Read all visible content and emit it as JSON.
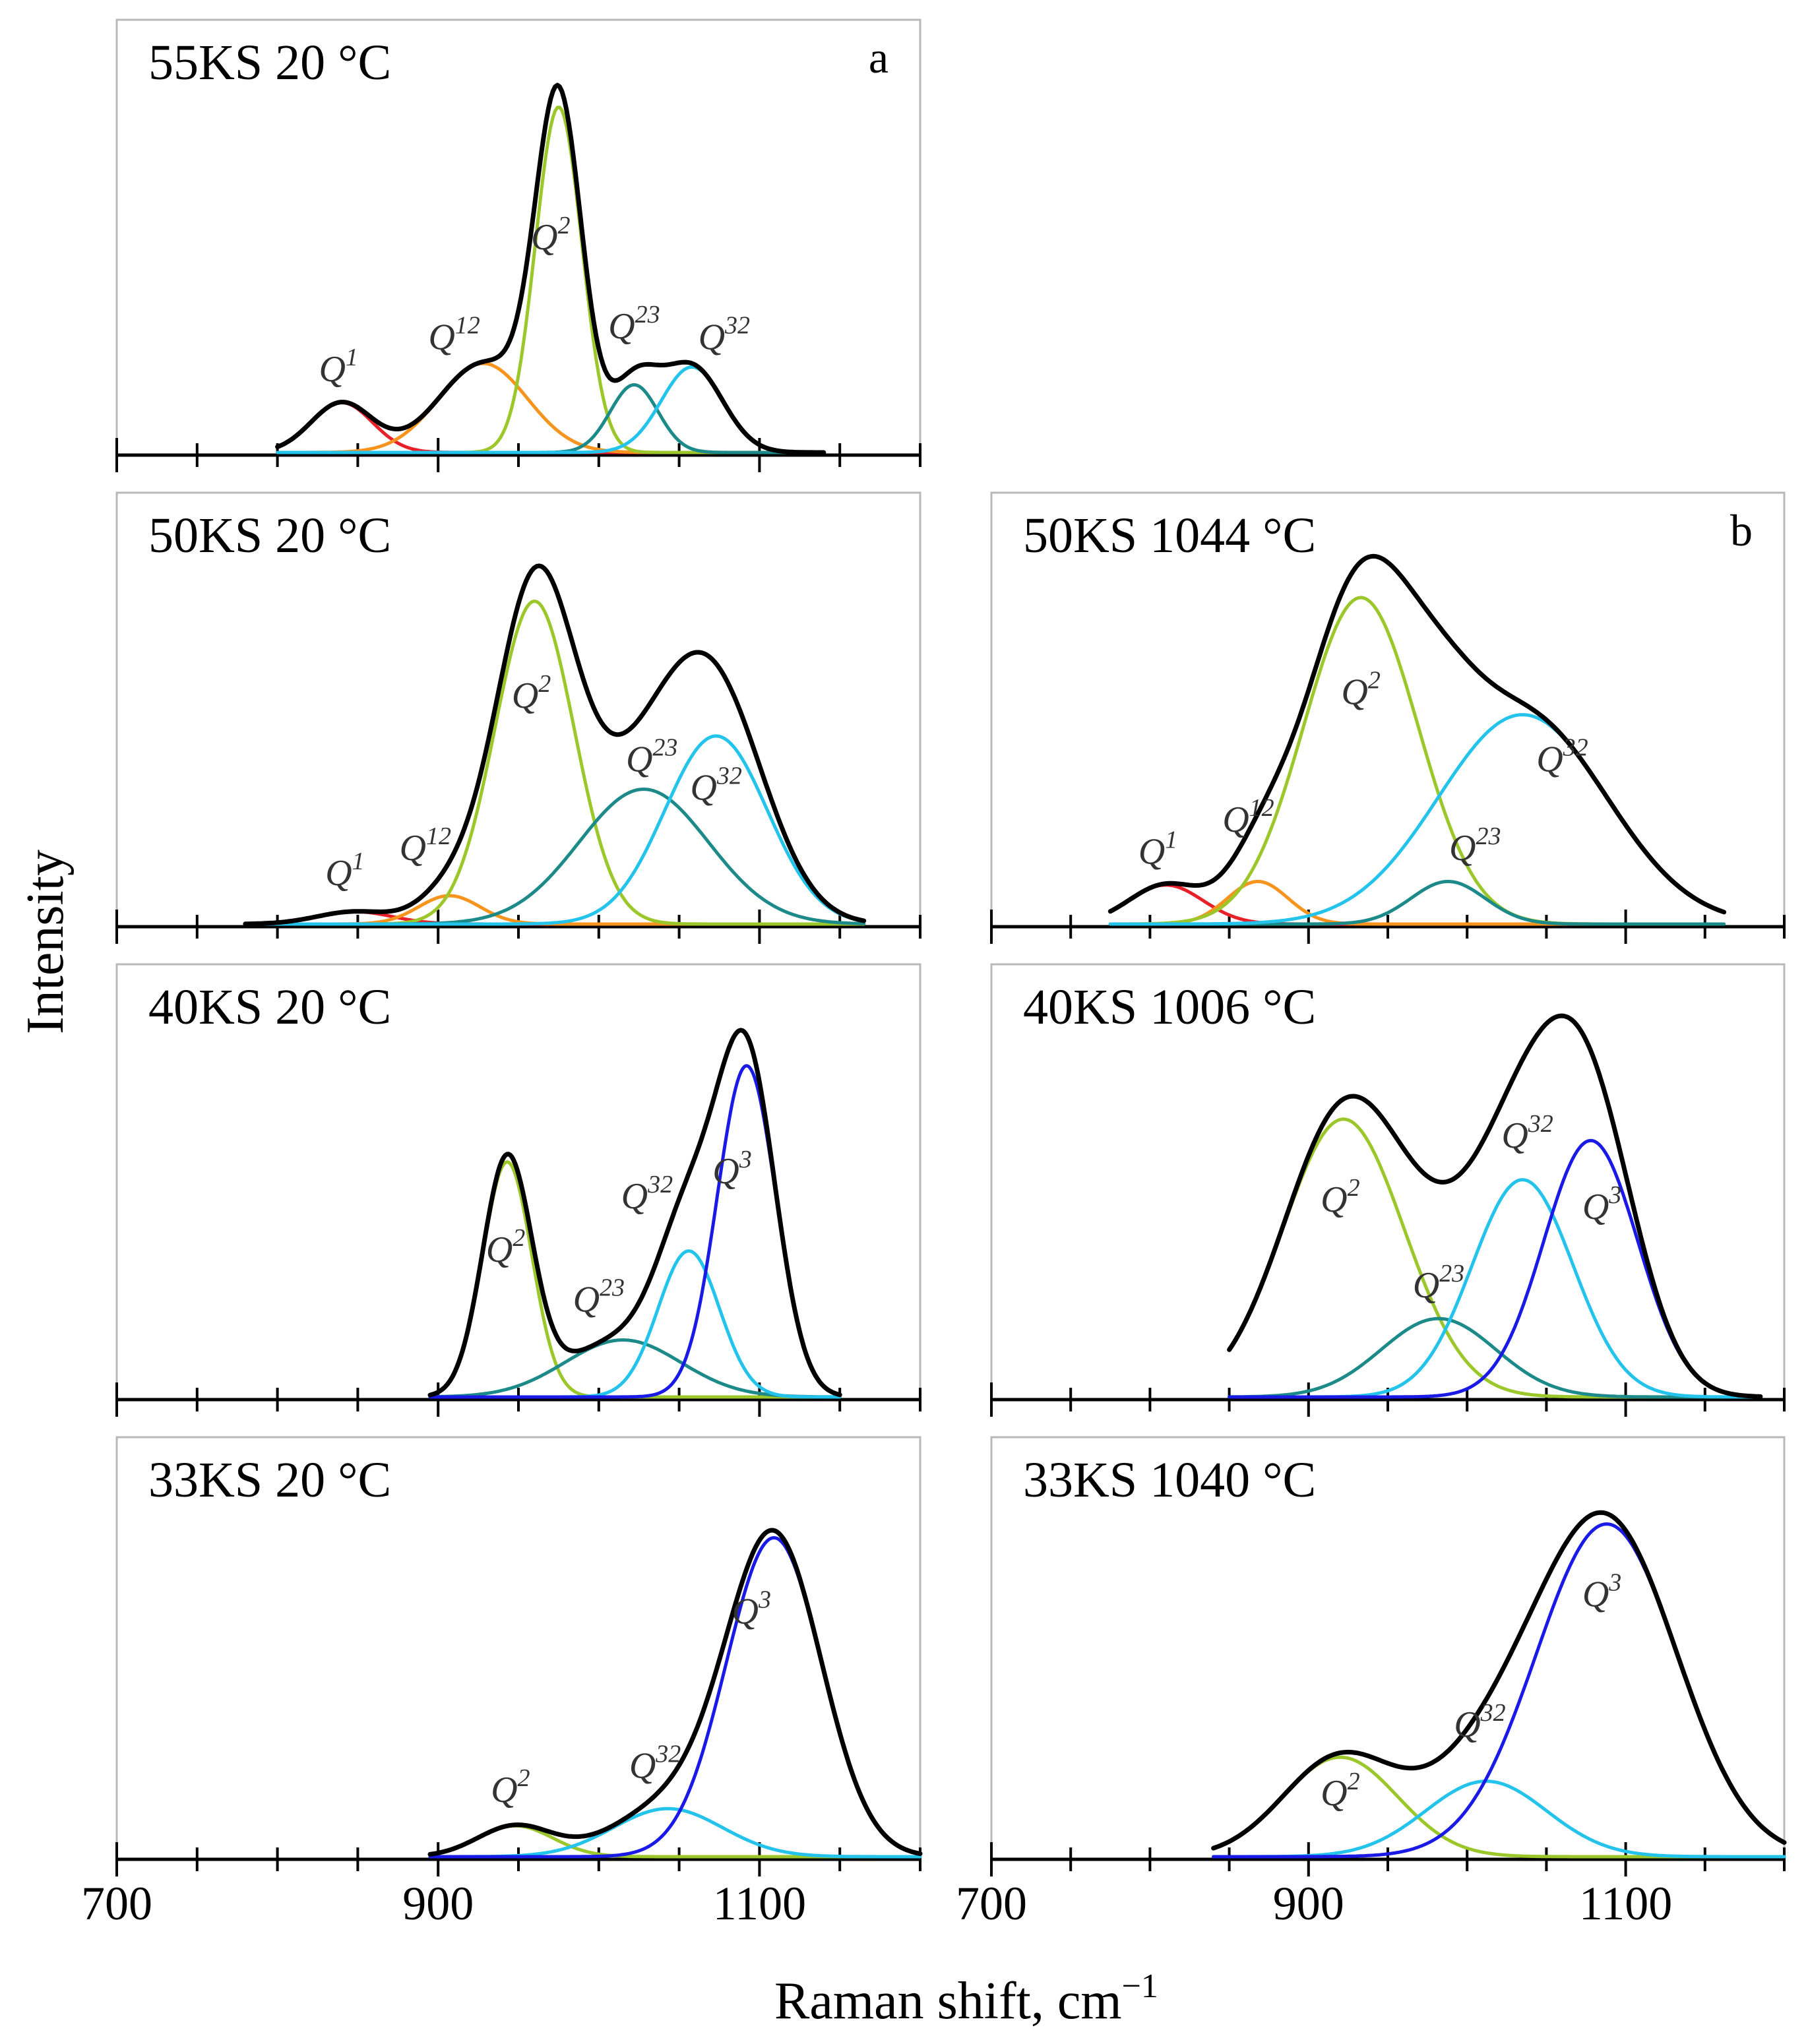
{
  "chart_data": {
    "type": "line",
    "xlabel": "Raman shift, cm",
    "xlabel_sup": "−1",
    "ylabel": "Intensity",
    "xlim": [
      700,
      1200
    ],
    "x_major_ticks": [
      700,
      900,
      1100
    ],
    "x_minor_step": 50,
    "colors": {
      "Q1": "#e8202a",
      "Q12": "#f7941d",
      "Q2": "#9bc72b",
      "Q23": "#1d8a8a",
      "Q32": "#23c3ec",
      "Q3": "#1a1ae6",
      "envelope": "#000000"
    },
    "panels": [
      {
        "id": "55KS-20",
        "title": "55KS 20 °C",
        "letter": "a",
        "column": "left",
        "row": 0,
        "ymax": 1.0,
        "range": [
          800,
          1140
        ],
        "peaks": [
          {
            "name": "Q1",
            "label": "Q",
            "sup": "1",
            "center": 840,
            "height": 0.14,
            "fwhm": 45,
            "label_at": [
              838,
              0.2
            ]
          },
          {
            "name": "Q12",
            "label": "Q",
            "sup": "12",
            "center": 928,
            "height": 0.25,
            "fwhm": 65,
            "label_at": [
              910,
              0.29
            ]
          },
          {
            "name": "Q2",
            "label": "Q",
            "sup": "2",
            "center": 975,
            "height": 0.97,
            "fwhm": 34,
            "label_at": [
              970,
              0.57
            ]
          },
          {
            "name": "Q23",
            "label": "Q",
            "sup": "23",
            "center": 1022,
            "height": 0.19,
            "fwhm": 35,
            "label_at": [
              1022,
              0.32
            ]
          },
          {
            "name": "Q32",
            "label": "Q",
            "sup": "32",
            "center": 1058,
            "height": 0.24,
            "fwhm": 45,
            "label_at": [
              1078,
              0.29
            ]
          }
        ]
      },
      {
        "id": "50KS-20",
        "title": "50KS 20 °C",
        "letter": "",
        "column": "left",
        "row": 1,
        "ymax": 1.0,
        "range": [
          780,
          1165
        ],
        "peaks": [
          {
            "name": "Q1",
            "label": "Q",
            "sup": "1",
            "center": 848,
            "height": 0.035,
            "fwhm": 55,
            "label_at": [
              842,
              0.11
            ]
          },
          {
            "name": "Q12",
            "label": "Q",
            "sup": "12",
            "center": 907,
            "height": 0.08,
            "fwhm": 45,
            "label_at": [
              892,
              0.18
            ]
          },
          {
            "name": "Q2",
            "label": "Q",
            "sup": "2",
            "center": 960,
            "height": 0.91,
            "fwhm": 58,
            "label_at": [
              958,
              0.61
            ]
          },
          {
            "name": "Q23",
            "label": "Q",
            "sup": "23",
            "center": 1028,
            "height": 0.38,
            "fwhm": 95,
            "label_at": [
              1033,
              0.43
            ]
          },
          {
            "name": "Q32",
            "label": "Q",
            "sup": "32",
            "center": 1073,
            "height": 0.53,
            "fwhm": 75,
            "label_at": [
              1073,
              0.35
            ]
          }
        ]
      },
      {
        "id": "40KS-20",
        "title": "40KS 20 °C",
        "letter": "",
        "column": "left",
        "row": 2,
        "ymax": 1.0,
        "range": [
          895,
          1150
        ],
        "peaks": [
          {
            "name": "Q2",
            "label": "Q",
            "sup": "2",
            "center": 943,
            "height": 0.66,
            "fwhm": 36,
            "label_at": [
              942,
              0.38
            ]
          },
          {
            "name": "Q23",
            "label": "Q",
            "sup": "23",
            "center": 1015,
            "height": 0.16,
            "fwhm": 85,
            "label_at": [
              1000,
              0.24
            ]
          },
          {
            "name": "Q32",
            "label": "Q",
            "sup": "32",
            "center": 1056,
            "height": 0.41,
            "fwhm": 45,
            "label_at": [
              1030,
              0.53
            ]
          },
          {
            "name": "Q3",
            "label": "Q",
            "sup": "3",
            "center": 1092,
            "height": 0.93,
            "fwhm": 43,
            "label_at": [
              1083,
              0.6
            ]
          }
        ]
      },
      {
        "id": "33KS-20",
        "title": "33KS 20 °C",
        "letter": "",
        "column": "left",
        "row": 3,
        "ymax": 1.0,
        "range": [
          895,
          1200
        ],
        "peaks": [
          {
            "name": "Q2",
            "label": "Q",
            "sup": "2",
            "center": 948,
            "height": 0.09,
            "fwhm": 55,
            "label_at": [
              945,
              0.16
            ]
          },
          {
            "name": "Q32",
            "label": "Q",
            "sup": "32",
            "center": 1043,
            "height": 0.14,
            "fwhm": 80,
            "label_at": [
              1035,
              0.23
            ]
          },
          {
            "name": "Q3",
            "label": "Q",
            "sup": "3",
            "center": 1109,
            "height": 0.93,
            "fwhm": 70,
            "label_at": [
              1095,
              0.68
            ]
          }
        ]
      },
      {
        "id": "50KS-1044",
        "title": "50KS 1044 °C",
        "letter": "b",
        "column": "right",
        "row": 1,
        "ymax": 1.0,
        "range": [
          775,
          1162
        ],
        "peaks": [
          {
            "name": "Q1",
            "label": "Q",
            "sup": "1",
            "center": 810,
            "height": 0.11,
            "fwhm": 55,
            "label_at": [
              805,
              0.17
            ]
          },
          {
            "name": "Q12",
            "label": "Q",
            "sup": "12",
            "center": 868,
            "height": 0.12,
            "fwhm": 45,
            "label_at": [
              862,
              0.26
            ]
          },
          {
            "name": "Q2",
            "label": "Q",
            "sup": "2",
            "center": 933,
            "height": 0.92,
            "fwhm": 85,
            "label_at": [
              933,
              0.62
            ]
          },
          {
            "name": "Q23",
            "label": "Q",
            "sup": "23",
            "center": 988,
            "height": 0.12,
            "fwhm": 55,
            "label_at": [
              1005,
              0.18
            ]
          },
          {
            "name": "Q32",
            "label": "Q",
            "sup": "32",
            "center": 1035,
            "height": 0.59,
            "fwhm": 125,
            "label_at": [
              1060,
              0.43
            ]
          }
        ]
      },
      {
        "id": "40KS-1006",
        "title": "40KS 1006 °C",
        "letter": "",
        "column": "right",
        "row": 2,
        "ymax": 1.0,
        "range": [
          850,
          1185
        ],
        "peaks": [
          {
            "name": "Q2",
            "label": "Q",
            "sup": "2",
            "center": 922,
            "height": 0.78,
            "fwhm": 90,
            "label_at": [
              920,
              0.52
            ]
          },
          {
            "name": "Q23",
            "label": "Q",
            "sup": "23",
            "center": 982,
            "height": 0.22,
            "fwhm": 85,
            "label_at": [
              982,
              0.28
            ]
          },
          {
            "name": "Q32",
            "label": "Q",
            "sup": "32",
            "center": 1035,
            "height": 0.61,
            "fwhm": 75,
            "label_at": [
              1038,
              0.7
            ]
          },
          {
            "name": "Q3",
            "label": "Q",
            "sup": "3",
            "center": 1078,
            "height": 0.72,
            "fwhm": 70,
            "label_at": [
              1085,
              0.5
            ]
          }
        ]
      },
      {
        "id": "33KS-1040",
        "title": "33KS 1040 °C",
        "letter": "",
        "column": "right",
        "row": 3,
        "ymax": 1.0,
        "range": [
          840,
          1200
        ],
        "peaks": [
          {
            "name": "Q2",
            "label": "Q",
            "sup": "2",
            "center": 920,
            "height": 0.29,
            "fwhm": 85,
            "label_at": [
              920,
              0.15
            ]
          },
          {
            "name": "Q32",
            "label": "Q",
            "sup": "32",
            "center": 1012,
            "height": 0.22,
            "fwhm": 90,
            "label_at": [
              1008,
              0.35
            ]
          },
          {
            "name": "Q3",
            "label": "Q",
            "sup": "3",
            "center": 1088,
            "height": 0.97,
            "fwhm": 105,
            "label_at": [
              1085,
              0.73
            ]
          }
        ]
      }
    ]
  }
}
